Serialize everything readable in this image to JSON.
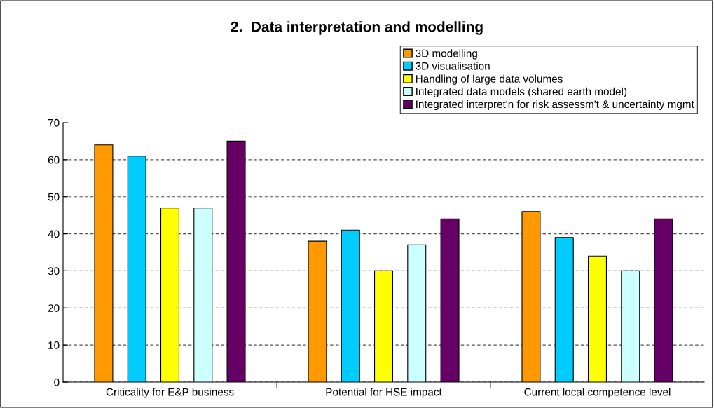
{
  "chart_data": {
    "type": "bar",
    "title": "2.  Data interpretation and modelling",
    "categories": [
      "Criticality for E&P business",
      "Potential for HSE impact",
      "Current local competence level"
    ],
    "series": [
      {
        "name": "3D modelling",
        "color": "#ff9900",
        "values": [
          64,
          38,
          46
        ]
      },
      {
        "name": "3D visualisation",
        "color": "#00ccff",
        "values": [
          61,
          41,
          39
        ]
      },
      {
        "name": "Handling of large data volumes",
        "color": "#ffff00",
        "values": [
          47,
          30,
          34
        ]
      },
      {
        "name": "Integrated data models (shared earth model)",
        "color": "#ccffff",
        "values": [
          47,
          37,
          30
        ]
      },
      {
        "name": "Integrated interpret'n for risk assessm't & uncertainty mgmt",
        "color": "#660066",
        "values": [
          65,
          44,
          44
        ]
      }
    ],
    "ylim": [
      0,
      70
    ],
    "yticks": [
      0,
      10,
      20,
      30,
      40,
      50,
      60,
      70
    ],
    "grid": "y",
    "legend": "top right"
  }
}
